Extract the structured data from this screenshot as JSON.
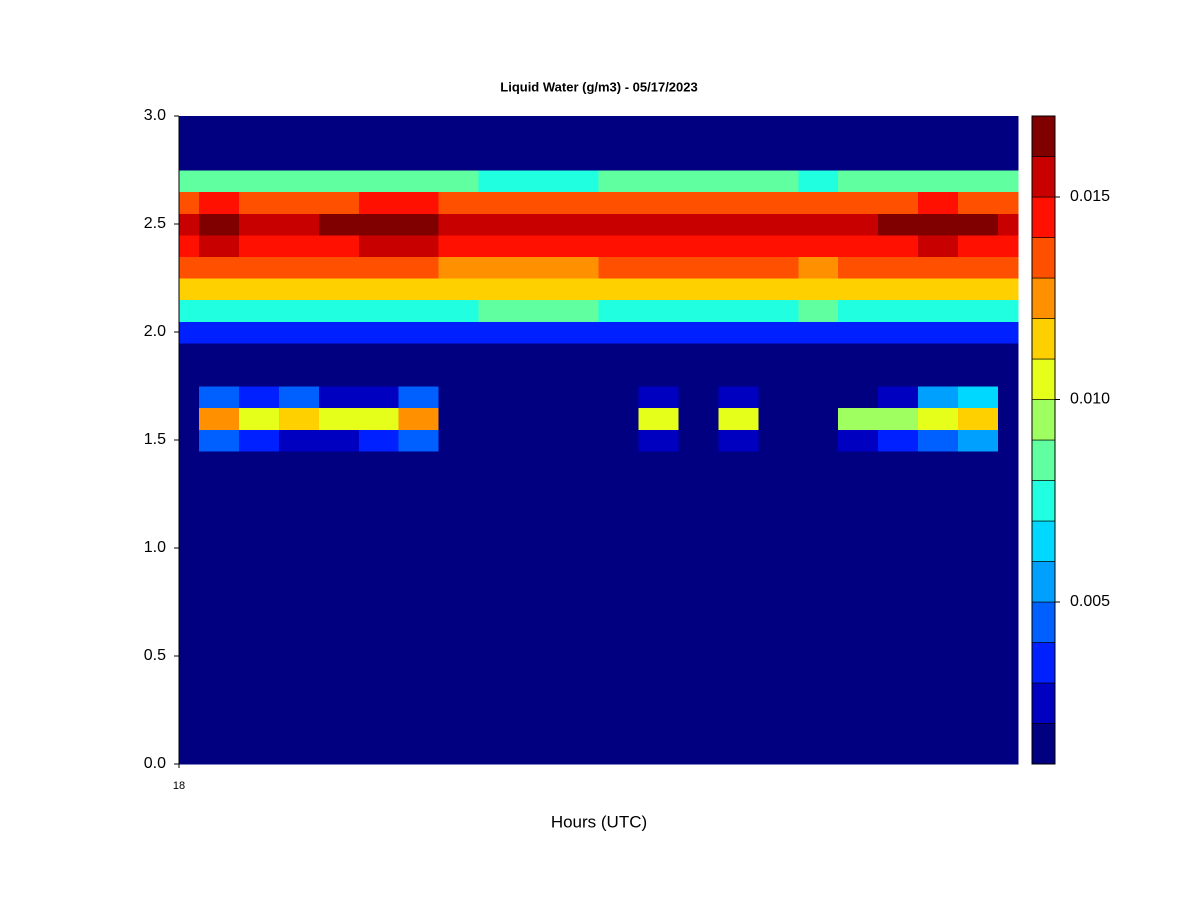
{
  "chart_data": {
    "type": "contour",
    "title": "Liquid Water (g/m3) - 05/17/2023",
    "xlabel": "Hours (UTC)",
    "x": [
      18,
      18.05,
      18.1,
      18.15,
      18.2,
      18.25,
      18.3,
      18.35,
      18.4,
      18.45,
      18.5,
      18.55,
      18.6,
      18.65,
      18.7,
      18.75,
      18.8,
      18.85,
      18.9,
      18.95,
      19,
      19.05
    ],
    "xlim": [
      18,
      19.05
    ],
    "xticks": [
      18
    ],
    "y": [
      0,
      0.5,
      1,
      1.4,
      1.5,
      1.6,
      1.7,
      1.8,
      1.9,
      2,
      2.1,
      2.2,
      2.3,
      2.4,
      2.5,
      2.6,
      2.7,
      2.8,
      2.9,
      3
    ],
    "ylim": [
      0,
      3
    ],
    "yticks": [
      {
        "value": 0,
        "label": "0.0"
      },
      0.5,
      {
        "value": 1,
        "label": "1.0"
      },
      1.5,
      {
        "value": 2,
        "label": "2.0"
      },
      2.5,
      {
        "value": 3,
        "label": "3.0"
      }
    ],
    "z": [
      [
        0.0005,
        0.0005,
        0.0005,
        0.0005,
        0.0005,
        0.0005,
        0.0005,
        0.0005,
        0.0005,
        0.0005,
        0.0005,
        0.0005,
        0.0005,
        0.0005,
        0.0005,
        0.0005,
        0.0005,
        0.0005,
        0.0005,
        0.0005,
        0.0005,
        0.0005
      ],
      [
        0.0005,
        0.0005,
        0.0005,
        0.0005,
        0.0005,
        0.0005,
        0.0005,
        0.0005,
        0.0005,
        0.0005,
        0.0005,
        0.0005,
        0.0005,
        0.0005,
        0.0005,
        0.0005,
        0.0005,
        0.0005,
        0.0005,
        0.0005,
        0.0005,
        0.0005
      ],
      [
        0.0005,
        0.0005,
        0.0005,
        0.0005,
        0.0005,
        0.0005,
        0.0005,
        0.0005,
        0.0005,
        0.0005,
        0.0005,
        0.0005,
        0.0005,
        0.0005,
        0.0005,
        0.0005,
        0.0005,
        0.0005,
        0.0005,
        0.0005,
        0.0005,
        0.0005
      ],
      [
        0.0005,
        0.0005,
        0.0005,
        0.0005,
        0.0005,
        0.0005,
        0.0005,
        0.0005,
        0.0005,
        0.0005,
        0.0005,
        0.0005,
        0.0005,
        0.0005,
        0.0005,
        0.0005,
        0.0005,
        0.0005,
        0.0005,
        0.0005,
        0.0005,
        0.0005
      ],
      [
        0.0005,
        0.004,
        0.003,
        0.002,
        0.002,
        0.003,
        0.004,
        0.0005,
        0.0005,
        0.0005,
        0.0005,
        0.0005,
        0.002,
        0.0005,
        0.002,
        0.0005,
        0.0005,
        0.002,
        0.003,
        0.004,
        0.005,
        0.0005
      ],
      [
        0.0005,
        0.012,
        0.0105,
        0.011,
        0.0105,
        0.0105,
        0.012,
        0.0005,
        0.0005,
        0.0005,
        0.0005,
        0.0005,
        0.0105,
        0.0005,
        0.0105,
        0.0005,
        0.0005,
        0.009,
        0.0095,
        0.0108,
        0.011,
        0.0005
      ],
      [
        0.0005,
        0.004,
        0.003,
        0.004,
        0.002,
        0.002,
        0.004,
        0.0005,
        0.0005,
        0.0005,
        0.0005,
        0.0005,
        0.002,
        0.0005,
        0.002,
        0.0005,
        0.0005,
        0.0005,
        0.002,
        0.005,
        0.006,
        0.0005
      ],
      [
        0.0005,
        0.0005,
        0.0005,
        0.0005,
        0.0005,
        0.0005,
        0.0005,
        0.0005,
        0.0005,
        0.0005,
        0.0005,
        0.0005,
        0.0005,
        0.0005,
        0.0005,
        0.0005,
        0.0005,
        0.0005,
        0.0005,
        0.0005,
        0.0005,
        0.0005
      ],
      [
        0.0005,
        0.0005,
        0.0005,
        0.0005,
        0.0005,
        0.0005,
        0.0005,
        0.0005,
        0.0005,
        0.0005,
        0.0005,
        0.0005,
        0.0005,
        0.0005,
        0.0005,
        0.0005,
        0.0005,
        0.0005,
        0.0005,
        0.0005,
        0.0005,
        0.0005
      ],
      [
        0.003,
        0.003,
        0.003,
        0.003,
        0.003,
        0.003,
        0.003,
        0.003,
        0.003,
        0.003,
        0.003,
        0.003,
        0.003,
        0.003,
        0.003,
        0.003,
        0.003,
        0.003,
        0.003,
        0.003,
        0.003,
        0.003
      ],
      [
        0.0075,
        0.0075,
        0.0075,
        0.0075,
        0.0075,
        0.0075,
        0.0075,
        0.0075,
        0.008,
        0.008,
        0.008,
        0.0075,
        0.0075,
        0.0075,
        0.0075,
        0.0075,
        0.008,
        0.0075,
        0.0075,
        0.0075,
        0.0075,
        0.0075
      ],
      [
        0.0112,
        0.0112,
        0.0112,
        0.0112,
        0.0112,
        0.0112,
        0.0112,
        0.0112,
        0.0115,
        0.0118,
        0.0115,
        0.0112,
        0.0112,
        0.0112,
        0.0112,
        0.0112,
        0.0115,
        0.0112,
        0.0112,
        0.0112,
        0.0112,
        0.0112
      ],
      [
        0.0132,
        0.0132,
        0.0135,
        0.0135,
        0.0132,
        0.0132,
        0.0132,
        0.0128,
        0.0125,
        0.0122,
        0.0125,
        0.0132,
        0.0132,
        0.0132,
        0.0132,
        0.0132,
        0.0125,
        0.0132,
        0.0132,
        0.0132,
        0.0132,
        0.0132
      ],
      [
        0.0145,
        0.0152,
        0.0147,
        0.0147,
        0.0146,
        0.0152,
        0.0152,
        0.0148,
        0.0142,
        0.014,
        0.0142,
        0.0146,
        0.0146,
        0.0146,
        0.0146,
        0.0146,
        0.0142,
        0.0146,
        0.0148,
        0.0152,
        0.0148,
        0.0145
      ],
      [
        0.0155,
        0.0168,
        0.0158,
        0.0157,
        0.016,
        0.0168,
        0.0168,
        0.0158,
        0.0152,
        0.015,
        0.0152,
        0.0158,
        0.0158,
        0.0158,
        0.0158,
        0.0158,
        0.0155,
        0.0158,
        0.016,
        0.0168,
        0.016,
        0.0155
      ],
      [
        0.0135,
        0.014,
        0.0135,
        0.0135,
        0.0135,
        0.014,
        0.014,
        0.0135,
        0.0132,
        0.013,
        0.0132,
        0.0135,
        0.0135,
        0.0135,
        0.0135,
        0.0135,
        0.0132,
        0.0135,
        0.0135,
        0.014,
        0.0135,
        0.0135
      ],
      [
        0.008,
        0.008,
        0.008,
        0.008,
        0.008,
        0.008,
        0.008,
        0.008,
        0.0078,
        0.0078,
        0.0078,
        0.008,
        0.008,
        0.008,
        0.008,
        0.008,
        0.0078,
        0.008,
        0.008,
        0.008,
        0.008,
        0.008
      ],
      [
        0.0015,
        0.0015,
        0.0015,
        0.0015,
        0.0015,
        0.0015,
        0.0015,
        0.0015,
        0.0015,
        0.0015,
        0.0015,
        0.0015,
        0.0015,
        0.0015,
        0.0015,
        0.0015,
        0.0015,
        0.0015,
        0.0015,
        0.0015,
        0.0015,
        0.0015
      ],
      [
        0.0005,
        0.0005,
        0.0005,
        0.0005,
        0.0005,
        0.0005,
        0.0005,
        0.0005,
        0.0005,
        0.0005,
        0.0005,
        0.0005,
        0.0005,
        0.0005,
        0.0005,
        0.0005,
        0.0005,
        0.0005,
        0.0005,
        0.0005,
        0.0005,
        0.0005
      ],
      [
        0.0005,
        0.0005,
        0.0005,
        0.0005,
        0.0005,
        0.0005,
        0.0005,
        0.0005,
        0.0005,
        0.0005,
        0.0005,
        0.0005,
        0.0005,
        0.0005,
        0.0005,
        0.0005,
        0.0005,
        0.0005,
        0.0005,
        0.0005,
        0.0005,
        0.0005
      ]
    ],
    "levels": [
      0.001,
      0.002,
      0.003,
      0.004,
      0.005,
      0.006,
      0.007,
      0.008,
      0.009,
      0.01,
      0.011,
      0.012,
      0.013,
      0.014,
      0.015,
      0.016,
      0.017
    ],
    "colors": [
      "#000080",
      "#0000c0",
      "#0020ff",
      "#0060ff",
      "#00a0ff",
      "#00d8ff",
      "#20ffe0",
      "#60ffa0",
      "#a0ff60",
      "#e6ff1a",
      "#ffd000",
      "#ff9000",
      "#ff5000",
      "#ff1000",
      "#c80000",
      "#800000"
    ],
    "colorbar_ticks": [
      0.005,
      {
        "value": 0.01,
        "label": "0.010"
      },
      0.015
    ]
  }
}
